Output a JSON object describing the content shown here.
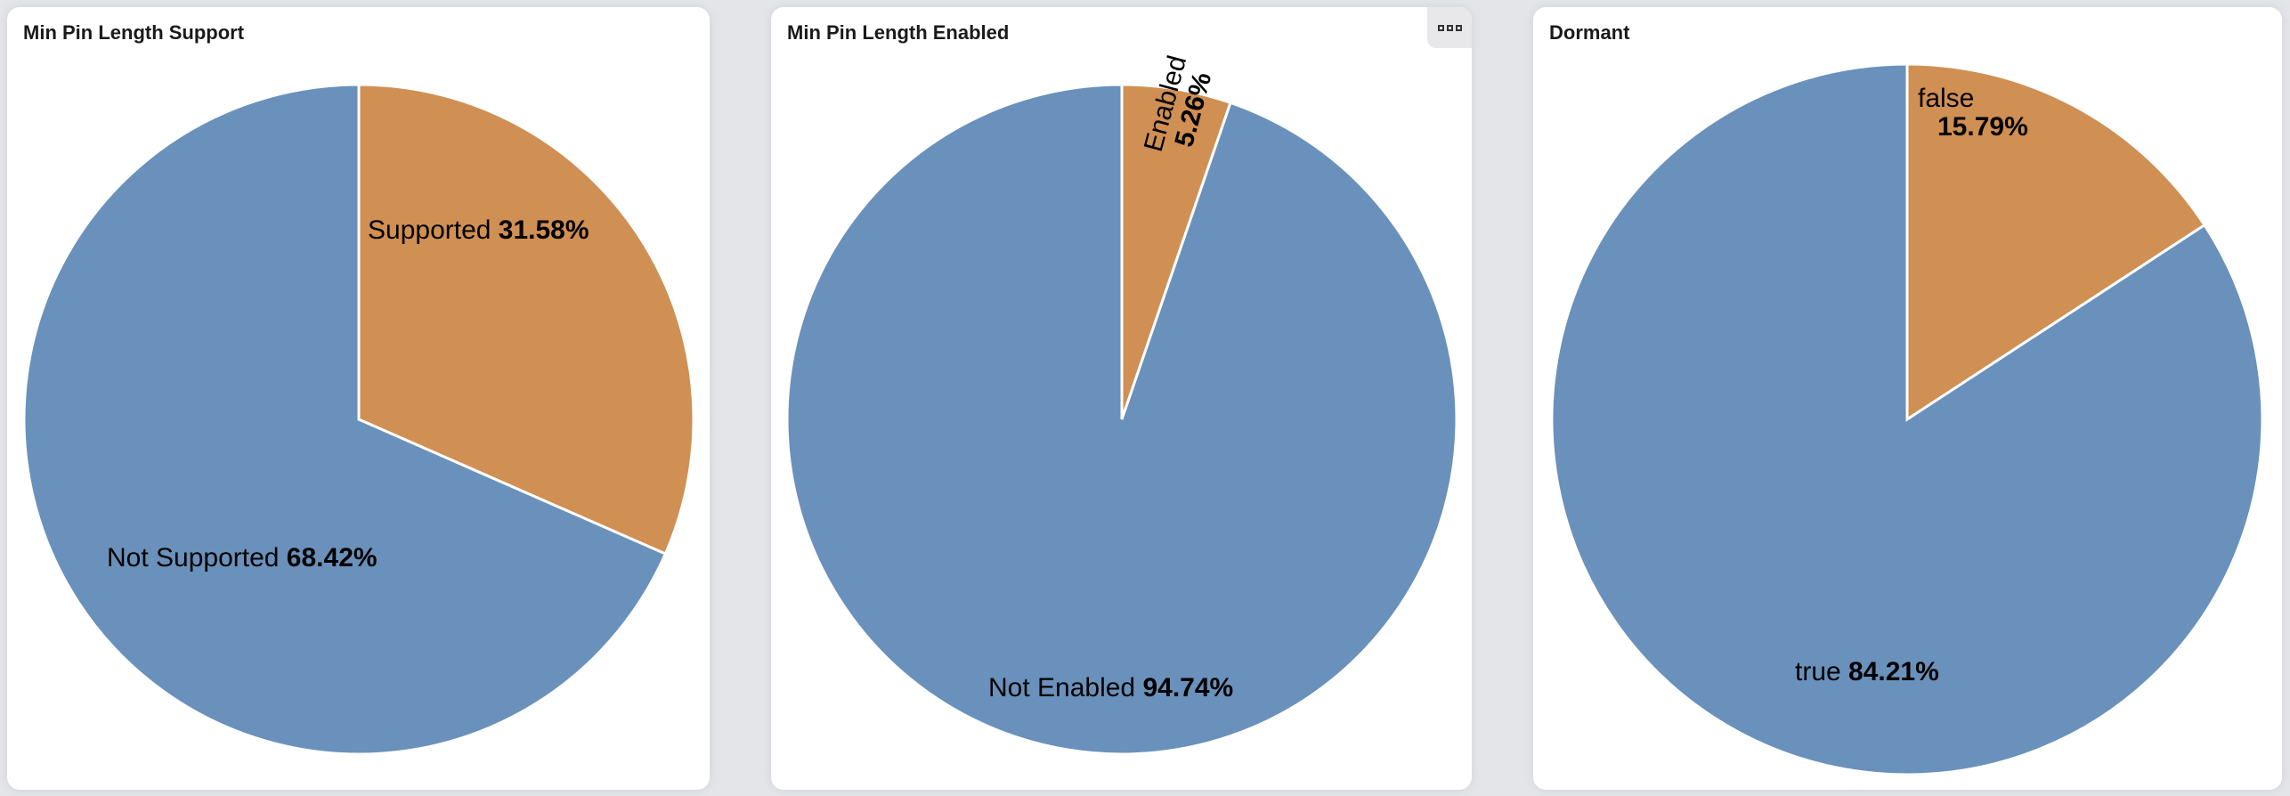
{
  "colors": {
    "primary": "#d08f53",
    "secondary": "#6a91bb"
  },
  "chart_data": [
    {
      "type": "pie",
      "title": "Min Pin Length Support",
      "slices": [
        {
          "label": "Supported",
          "value": 31.58,
          "value_label": "31.58%",
          "color": "#d08f53"
        },
        {
          "label": "Not Supported",
          "value": 68.42,
          "value_label": "68.42%",
          "color": "#6a91bb"
        }
      ]
    },
    {
      "type": "pie",
      "title": "Min Pin Length Enabled",
      "slices": [
        {
          "label": "Enabled",
          "value": 5.26,
          "value_label": "5.26%",
          "color": "#d08f53"
        },
        {
          "label": "Not Enabled",
          "value": 94.74,
          "value_label": "94.74%",
          "color": "#6a91bb"
        }
      ]
    },
    {
      "type": "pie",
      "title": "Dormant",
      "slices": [
        {
          "label": "false",
          "value": 15.79,
          "value_label": "15.79%",
          "color": "#d08f53"
        },
        {
          "label": "true",
          "value": 84.21,
          "value_label": "84.21%",
          "color": "#6a91bb"
        }
      ]
    }
  ],
  "panel_menu_icon": "more-options-icon"
}
